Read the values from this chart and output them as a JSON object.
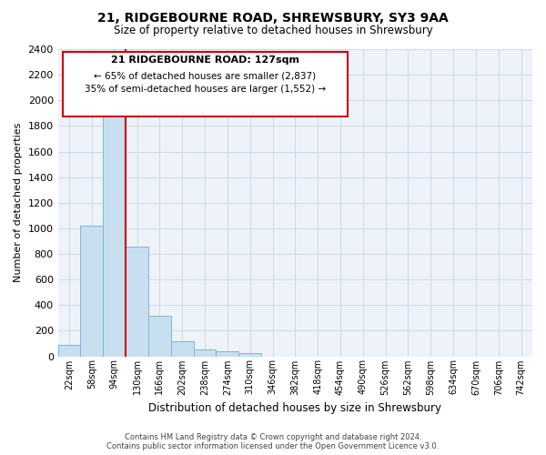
{
  "title": "21, RIDGEBOURNE ROAD, SHREWSBURY, SY3 9AA",
  "subtitle": "Size of property relative to detached houses in Shrewsbury",
  "xlabel": "Distribution of detached houses by size in Shrewsbury",
  "ylabel": "Number of detached properties",
  "bar_labels": [
    "22sqm",
    "58sqm",
    "94sqm",
    "130sqm",
    "166sqm",
    "202sqm",
    "238sqm",
    "274sqm",
    "310sqm",
    "346sqm",
    "382sqm",
    "418sqm",
    "454sqm",
    "490sqm",
    "526sqm",
    "562sqm",
    "598sqm",
    "634sqm",
    "670sqm",
    "706sqm",
    "742sqm"
  ],
  "bar_values": [
    90,
    1020,
    1890,
    860,
    320,
    115,
    50,
    40,
    25,
    0,
    0,
    0,
    0,
    0,
    0,
    0,
    0,
    0,
    0,
    0,
    0
  ],
  "bar_color": "#c8dff0",
  "bar_edge_color": "#7fb5d5",
  "vline_color": "#cc0000",
  "ylim": [
    0,
    2400
  ],
  "yticks": [
    0,
    200,
    400,
    600,
    800,
    1000,
    1200,
    1400,
    1600,
    1800,
    2000,
    2200,
    2400
  ],
  "annotation_title": "21 RIDGEBOURNE ROAD: 127sqm",
  "annotation_line1": "← 65% of detached houses are smaller (2,837)",
  "annotation_line2": "35% of semi-detached houses are larger (1,552) →",
  "footer_line1": "Contains HM Land Registry data © Crown copyright and database right 2024.",
  "footer_line2": "Contains public sector information licensed under the Open Government Licence v3.0.",
  "background_color": "#ffffff",
  "grid_color": "#cdd8ea"
}
